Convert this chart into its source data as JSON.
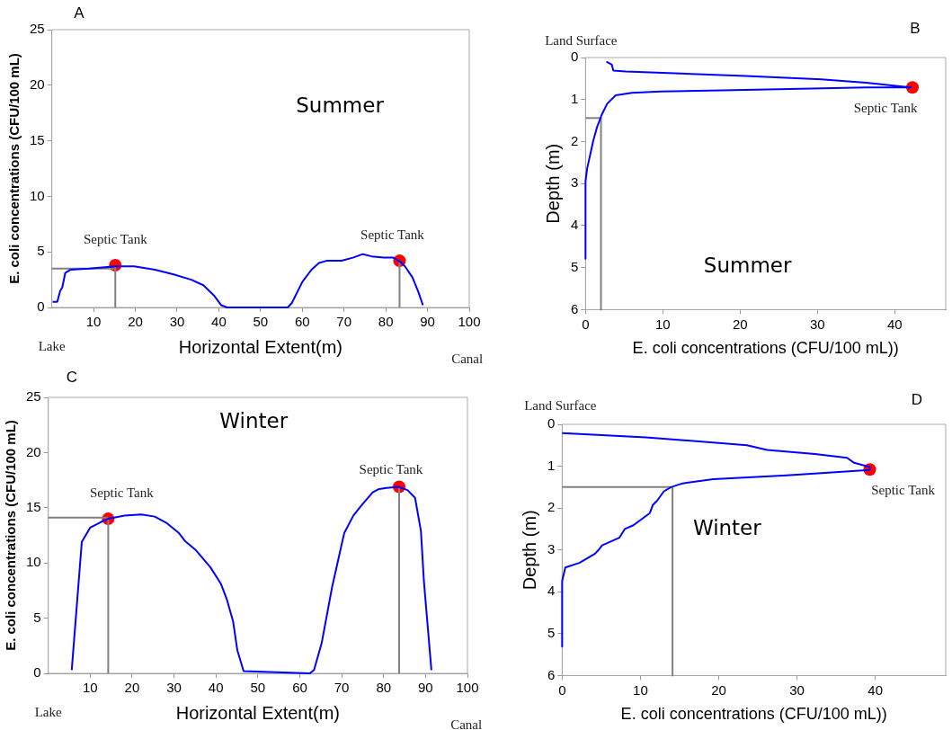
{
  "chart_data": [
    {
      "type": "line",
      "title": "A",
      "subtitle": "Summer",
      "xlabel": "Horizontal Extent(m)",
      "ylabel": "E. coli concentrations (CFU/100 mL)",
      "marker": "none",
      "xlim": [
        0,
        100
      ],
      "xticks": [
        10,
        20,
        30,
        40,
        50,
        60,
        70,
        80,
        90,
        100
      ],
      "ylim": [
        0,
        25
      ],
      "yticks": [
        0,
        5,
        10,
        15,
        20,
        25
      ],
      "series": [
        {
          "color": "#0000ff",
          "x": [
            0.2,
            1.3,
            2.0,
            2.5,
            3.2,
            4.5,
            8.9,
            15.2,
            19.7,
            24.7,
            29,
            33.4,
            36.3,
            38.8,
            40.6,
            42,
            56.5,
            57.5,
            60,
            62.2,
            64,
            65.8,
            69.4,
            72.3,
            74.5,
            76.6,
            79.5,
            81.7,
            83.5,
            84.6,
            86.4,
            87.8,
            88.9
          ],
          "values": [
            0.5,
            0.5,
            1.5,
            1.8,
            3.1,
            3.4,
            3.5,
            3.7,
            3.7,
            3.4,
            3.0,
            2.5,
            2.0,
            1.1,
            0.2,
            0,
            0,
            0.4,
            2.3,
            3.4,
            4.0,
            4.2,
            4.2,
            4.5,
            4.8,
            4.6,
            4.5,
            4.5,
            4.1,
            3.7,
            2.7,
            1.4,
            0.2
          ]
        },
        {
          "type": "line",
          "color": "#808080",
          "x": [
            0,
            15.2
          ],
          "values": [
            3.5,
            3.5
          ]
        },
        {
          "type": "line",
          "color": "#808080",
          "x": [
            15.2,
            15.2
          ],
          "values": [
            0,
            3.8
          ]
        },
        {
          "type": "line",
          "color": "#808080",
          "x": [
            83.3,
            83.3
          ],
          "values": [
            0,
            4.2
          ]
        },
        {
          "type": "scatter",
          "marker": "circle",
          "color": "#ff0000",
          "x": [
            15.2,
            83.3
          ],
          "values": [
            3.8,
            4.2
          ]
        }
      ],
      "annotations": [
        {
          "text": "Septic Tank",
          "x": 15.2,
          "y": 3.8
        },
        {
          "text": "Septic Tank",
          "x": 83.3,
          "y": 4.2
        },
        "Lake",
        "Canal"
      ]
    },
    {
      "type": "line",
      "title": "B",
      "subtitle": "Summer",
      "xlabel": "E. coli concentrations (CFU/100 mL))",
      "ylabel": "Depth (m)",
      "marker": "none",
      "xlim": [
        0,
        46.6
      ],
      "xticks": [
        0,
        10,
        20,
        30,
        40
      ],
      "ylim": [
        6,
        0
      ],
      "yticks": [
        0,
        1,
        2,
        3,
        4,
        5,
        6
      ],
      "series": [
        {
          "color": "#0000ff",
          "x": [
            2.7,
            3.4,
            3.6,
            5.2,
            20.7,
            30.5,
            36.3,
            42.1,
            36.3,
            20.7,
            9.8,
            6.0,
            3.9,
            2.8,
            2.1,
            1.5,
            1.0,
            0.5,
            0.2,
            0,
            0
          ],
          "values": [
            0.1,
            0.17,
            0.31,
            0.33,
            0.44,
            0.52,
            0.6,
            0.71,
            0.71,
            0.77,
            0.81,
            0.84,
            0.9,
            1.1,
            1.36,
            1.65,
            1.98,
            2.4,
            2.65,
            2.95,
            4.79
          ]
        },
        {
          "type": "line",
          "color": "#808080",
          "x": [
            0,
            2.0
          ],
          "values": [
            1.44,
            1.44
          ]
        },
        {
          "type": "line",
          "color": "#808080",
          "x": [
            2.0,
            2.0
          ],
          "values": [
            1.44,
            6
          ]
        },
        {
          "type": "scatter",
          "marker": "circle",
          "color": "#ff0000",
          "x": [
            42.3
          ],
          "values": [
            0.71
          ]
        }
      ],
      "annotations": [
        {
          "text": "Septic Tank",
          "x": 42.3,
          "y": 0.71
        },
        "Land Surface"
      ]
    },
    {
      "type": "line",
      "title": "C",
      "subtitle": "Winter",
      "xlabel": "Horizontal Extent(m)",
      "ylabel": "E. coli concentrations (CFU/100 mL)",
      "marker": "none",
      "xlim": [
        0,
        100
      ],
      "xticks": [
        10,
        20,
        30,
        40,
        50,
        60,
        70,
        80,
        90,
        100
      ],
      "ylim": [
        0,
        25
      ],
      "yticks": [
        0,
        5,
        10,
        15,
        20,
        25
      ],
      "series": [
        {
          "color": "#0000ff",
          "x": [
            5.6,
            8.0,
            10,
            12.5,
            14.3,
            18.2,
            22.2,
            25.4,
            28.3,
            31.2,
            32.6,
            35.1,
            38.7,
            41.2,
            42.6,
            44.1,
            45.1,
            46.6,
            62.4,
            63.4,
            65.2,
            67.7,
            70.6,
            72.8,
            74.9,
            77.4,
            78.9,
            80.7,
            83.5,
            85.7,
            87.5,
            88.9,
            89.6,
            91.4
          ],
          "values": [
            0.3,
            11.9,
            13.2,
            13.7,
            14.0,
            14.3,
            14.4,
            14.2,
            13.6,
            12.7,
            12.0,
            11.2,
            9.6,
            8.1,
            6.7,
            4.7,
            2.1,
            0.2,
            0,
            0.3,
            2.7,
            7.8,
            12.7,
            14.3,
            15.3,
            16.4,
            16.7,
            16.8,
            16.9,
            16.6,
            15.9,
            12.9,
            8.4,
            0.3
          ]
        },
        {
          "type": "line",
          "color": "#808080",
          "x": [
            0,
            14.3
          ],
          "values": [
            14.1,
            14.1
          ]
        },
        {
          "type": "line",
          "color": "#808080",
          "x": [
            14.3,
            14.3
          ],
          "values": [
            0,
            14.0
          ]
        },
        {
          "type": "line",
          "color": "#808080",
          "x": [
            83.7,
            83.7
          ],
          "values": [
            0,
            16.9
          ]
        },
        {
          "type": "scatter",
          "marker": "circle",
          "color": "#ff0000",
          "x": [
            14.3,
            83.7
          ],
          "values": [
            14.0,
            16.9
          ]
        }
      ],
      "annotations": [
        {
          "text": "Septic Tank",
          "x": 14.3,
          "y": 14.0
        },
        {
          "text": "Septic Tank",
          "x": 83.7,
          "y": 16.9
        },
        "Lake",
        "Canal"
      ]
    },
    {
      "type": "line",
      "title": "D",
      "subtitle": "Winter",
      "xlabel": "E. coli concentrations (CFU/100 mL))",
      "ylabel": "Depth (m)",
      "marker": "none",
      "xlim": [
        0,
        49
      ],
      "xticks": [
        0,
        10,
        20,
        30,
        40
      ],
      "ylim": [
        6,
        0
      ],
      "yticks": [
        0,
        1,
        2,
        3,
        4,
        5,
        6
      ],
      "series": [
        {
          "color": "#0000ff",
          "x": [
            0,
            10.7,
            23.6,
            26.2,
            32.3,
            36.4,
            37.3,
            39.3,
            39.3,
            28.7,
            19.3,
            15.4,
            13.9,
            13.0,
            12.1,
            11.6,
            11.2,
            9.1,
            8.0,
            7.3,
            5.1,
            4.7,
            4.2,
            2.2,
            0.4,
            0,
            0
          ],
          "values": [
            0.21,
            0.31,
            0.5,
            0.61,
            0.71,
            0.8,
            0.92,
            1.02,
            1.09,
            1.22,
            1.31,
            1.41,
            1.5,
            1.6,
            1.83,
            1.92,
            2.12,
            2.41,
            2.5,
            2.71,
            2.89,
            2.99,
            3.09,
            3.31,
            3.42,
            3.74,
            5.31
          ]
        },
        {
          "type": "line",
          "color": "#808080",
          "x": [
            0,
            13.9
          ],
          "values": [
            1.5,
            1.5
          ]
        },
        {
          "type": "line",
          "color": "#808080",
          "x": [
            14.1,
            14.1
          ],
          "values": [
            1.5,
            6
          ]
        },
        {
          "type": "scatter",
          "marker": "circle",
          "color": "#ff0000",
          "x": [
            39.3
          ],
          "values": [
            1.08
          ]
        }
      ],
      "annotations": [
        {
          "text": "Septic Tank",
          "x": 39.3,
          "y": 1.08
        },
        "Land Surface"
      ]
    }
  ]
}
